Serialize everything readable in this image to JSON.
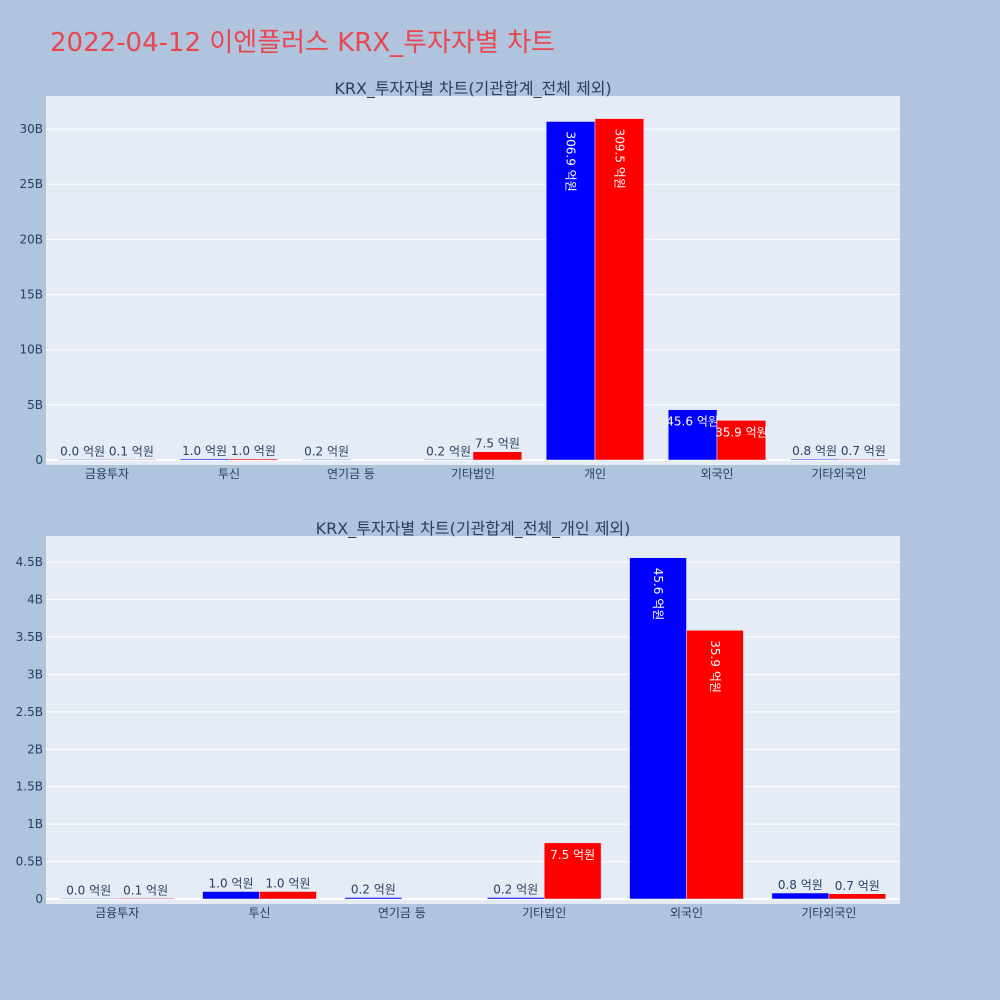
{
  "page": {
    "title": "2022-04-12 이엔플러스 KRX_투자자별 차트"
  },
  "colors": {
    "series_a": "#0000ff",
    "series_b": "#ff0000",
    "plot_bg": "#e5ecf6",
    "page_bg": "#b0c4de",
    "title": "#e8474f"
  },
  "chart_data": [
    {
      "type": "bar",
      "title": "KRX_투자자별 차트(기관합계_전체 제외)",
      "categories": [
        "금융투자",
        "투신",
        "연기금 등",
        "기타법인",
        "개인",
        "외국인",
        "기타외국인"
      ],
      "ylim": [
        0,
        33
      ],
      "yticks": [
        0,
        5,
        10,
        15,
        20,
        25,
        30
      ],
      "ytick_labels": [
        "0",
        "5B",
        "10B",
        "15B",
        "20B",
        "25B",
        "30B"
      ],
      "series": [
        {
          "values": [
            0.0,
            0.1,
            0.02,
            0.02,
            30.69,
            4.56,
            0.08
          ],
          "labels": [
            "0.0 억원",
            "1.0 억원",
            "0.2 억원",
            "0.2 억원",
            "306.9 억원",
            "45.6 억원",
            "0.8 억원"
          ]
        },
        {
          "values": [
            0.01,
            0.1,
            null,
            0.75,
            30.95,
            3.59,
            0.07
          ],
          "labels": [
            "0.1 억원",
            "1.0 억원",
            "",
            "7.5 억원",
            "309.5 억원",
            "35.9 억원",
            "0.7 억원"
          ]
        }
      ],
      "grid": true
    },
    {
      "type": "bar",
      "title": "KRX_투자자별 차트(기관합계_전체_개인 제외)",
      "categories": [
        "금융투자",
        "투신",
        "연기금 등",
        "기타법인",
        "외국인",
        "기타외국인"
      ],
      "ylim": [
        0,
        4.85
      ],
      "yticks": [
        0,
        0.5,
        1,
        1.5,
        2,
        2.5,
        3,
        3.5,
        4,
        4.5
      ],
      "ytick_labels": [
        "0",
        "0.5B",
        "1B",
        "1.5B",
        "2B",
        "2.5B",
        "3B",
        "3.5B",
        "4B",
        "4.5B"
      ],
      "series": [
        {
          "values": [
            0.0,
            0.1,
            0.02,
            0.02,
            4.56,
            0.08
          ],
          "labels": [
            "0.0 억원",
            "1.0 억원",
            "0.2 억원",
            "0.2 억원",
            "45.6 억원",
            "0.8 억원"
          ]
        },
        {
          "values": [
            0.01,
            0.1,
            null,
            0.75,
            3.59,
            0.07
          ],
          "labels": [
            "0.1 억원",
            "1.0 억원",
            "",
            "7.5 억원",
            "35.9 억원",
            "0.7 억원"
          ]
        }
      ],
      "grid": true
    }
  ]
}
